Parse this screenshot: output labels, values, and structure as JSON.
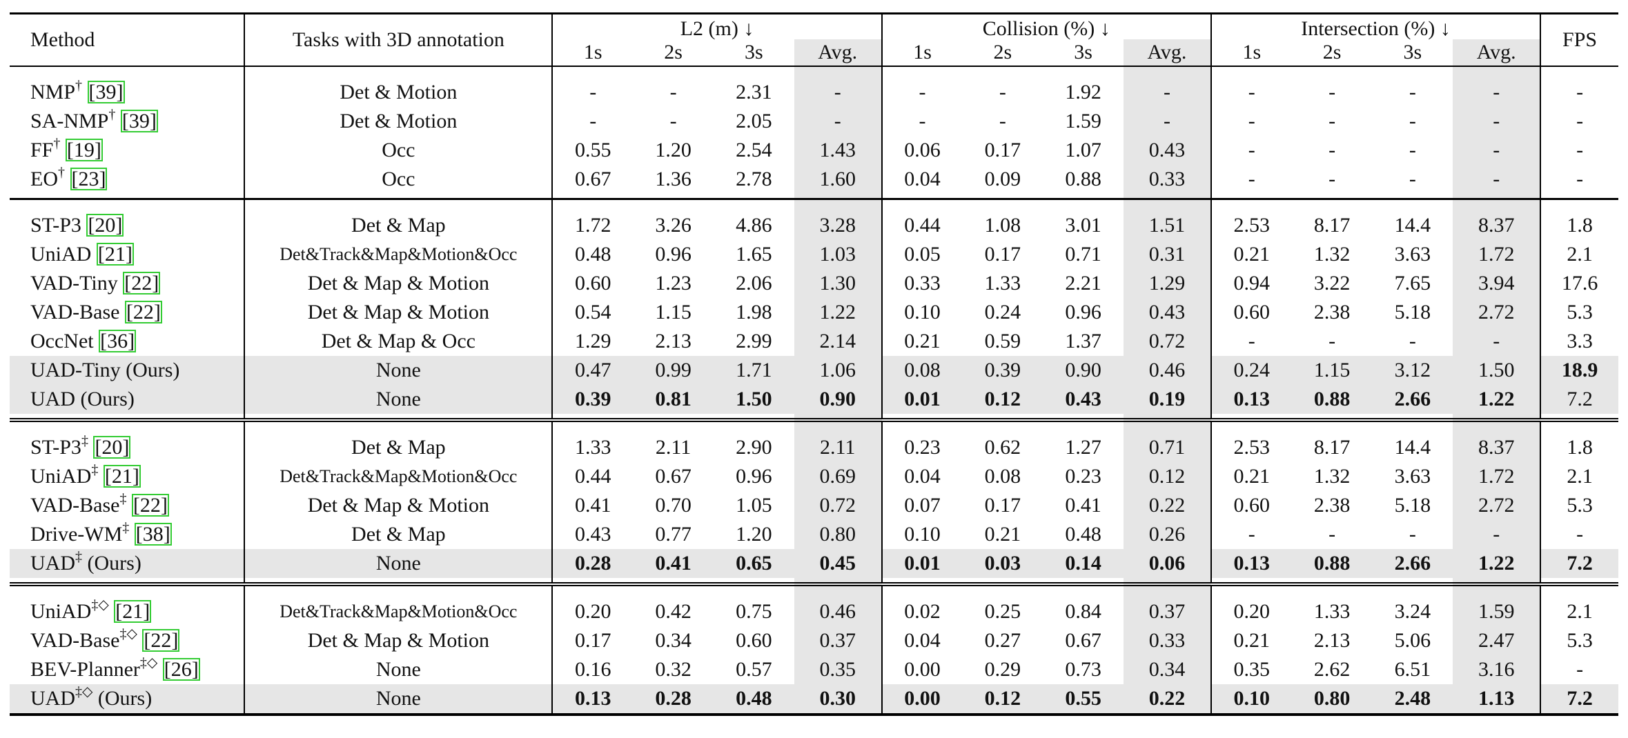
{
  "header": {
    "method": "Method",
    "tasks": "Tasks with 3D annotation",
    "groups": [
      {
        "title": "L2 (m) ↓",
        "cols": [
          "1s",
          "2s",
          "3s",
          "Avg."
        ]
      },
      {
        "title": "Collision (%) ↓",
        "cols": [
          "1s",
          "2s",
          "3s",
          "Avg."
        ]
      },
      {
        "title": "Intersection (%) ↓",
        "cols": [
          "1s",
          "2s",
          "3s",
          "Avg."
        ]
      }
    ],
    "fps": "FPS"
  },
  "sections": [
    {
      "rows": [
        {
          "name": "NMP",
          "sup": "†",
          "cite": "[39]",
          "tasks": "Det & Motion",
          "small": false,
          "values": [
            "-",
            "-",
            "2.31",
            "-",
            "-",
            "-",
            "1.92",
            "-",
            "-",
            "-",
            "-",
            "-",
            "-"
          ]
        },
        {
          "name": "SA-NMP",
          "sup": "†",
          "cite": "[39]",
          "tasks": "Det & Motion",
          "small": false,
          "values": [
            "-",
            "-",
            "2.05",
            "-",
            "-",
            "-",
            "1.59",
            "-",
            "-",
            "-",
            "-",
            "-",
            "-"
          ]
        },
        {
          "name": "FF",
          "sup": "†",
          "cite": "[19]",
          "tasks": "Occ",
          "small": false,
          "values": [
            "0.55",
            "1.20",
            "2.54",
            "1.43",
            "0.06",
            "0.17",
            "1.07",
            "0.43",
            "-",
            "-",
            "-",
            "-",
            "-"
          ]
        },
        {
          "name": "EO",
          "sup": "†",
          "cite": "[23]",
          "tasks": "Occ",
          "small": false,
          "values": [
            "0.67",
            "1.36",
            "2.78",
            "1.60",
            "0.04",
            "0.09",
            "0.88",
            "0.33",
            "-",
            "-",
            "-",
            "-",
            "-"
          ]
        }
      ]
    },
    {
      "rows": [
        {
          "name": "ST-P3",
          "sup": "",
          "cite": "[20]",
          "tasks": "Det & Map",
          "small": false,
          "values": [
            "1.72",
            "3.26",
            "4.86",
            "3.28",
            "0.44",
            "1.08",
            "3.01",
            "1.51",
            "2.53",
            "8.17",
            "14.4",
            "8.37",
            "1.8"
          ]
        },
        {
          "name": "UniAD",
          "sup": "",
          "cite": "[21]",
          "tasks": "Det&Track&Map&Motion&Occ",
          "small": true,
          "values": [
            "0.48",
            "0.96",
            "1.65",
            "1.03",
            "0.05",
            "0.17",
            "0.71",
            "0.31",
            "0.21",
            "1.32",
            "3.63",
            "1.72",
            "2.1"
          ]
        },
        {
          "name": "VAD-Tiny",
          "sup": "",
          "cite": "[22]",
          "tasks": "Det & Map & Motion",
          "small": false,
          "values": [
            "0.60",
            "1.23",
            "2.06",
            "1.30",
            "0.33",
            "1.33",
            "2.21",
            "1.29",
            "0.94",
            "3.22",
            "7.65",
            "3.94",
            "17.6"
          ]
        },
        {
          "name": "VAD-Base",
          "sup": "",
          "cite": "[22]",
          "tasks": "Det & Map & Motion",
          "small": false,
          "values": [
            "0.54",
            "1.15",
            "1.98",
            "1.22",
            "0.10",
            "0.24",
            "0.96",
            "0.43",
            "0.60",
            "2.38",
            "5.18",
            "2.72",
            "5.3"
          ]
        },
        {
          "name": "OccNet",
          "sup": "",
          "cite": "[36]",
          "tasks": "Det & Map & Occ",
          "small": false,
          "values": [
            "1.29",
            "2.13",
            "2.99",
            "2.14",
            "0.21",
            "0.59",
            "1.37",
            "0.72",
            "-",
            "-",
            "-",
            "-",
            "3.3"
          ]
        },
        {
          "name": "UAD-Tiny (Ours)",
          "sup": "",
          "cite": "",
          "tasks": "None",
          "small": false,
          "grey": true,
          "values": [
            "0.47",
            "0.99",
            "1.71",
            "1.06",
            "0.08",
            "0.39",
            "0.90",
            "0.46",
            "0.24",
            "1.15",
            "3.12",
            "1.50",
            "18.9"
          ],
          "bold": [
            12
          ]
        },
        {
          "name": "UAD (Ours)",
          "sup": "",
          "cite": "",
          "tasks": "None",
          "small": false,
          "grey": true,
          "values": [
            "0.39",
            "0.81",
            "1.50",
            "0.90",
            "0.01",
            "0.12",
            "0.43",
            "0.19",
            "0.13",
            "0.88",
            "2.66",
            "1.22",
            "7.2"
          ],
          "bold": [
            0,
            1,
            2,
            3,
            4,
            5,
            6,
            7,
            8,
            9,
            10,
            11
          ]
        }
      ]
    },
    {
      "rows": [
        {
          "name": "ST-P3",
          "sup": "‡",
          "cite": "[20]",
          "tasks": "Det & Map",
          "small": false,
          "values": [
            "1.33",
            "2.11",
            "2.90",
            "2.11",
            "0.23",
            "0.62",
            "1.27",
            "0.71",
            "2.53",
            "8.17",
            "14.4",
            "8.37",
            "1.8"
          ]
        },
        {
          "name": "UniAD",
          "sup": "‡",
          "cite": "[21]",
          "tasks": "Det&Track&Map&Motion&Occ",
          "small": true,
          "values": [
            "0.44",
            "0.67",
            "0.96",
            "0.69",
            "0.04",
            "0.08",
            "0.23",
            "0.12",
            "0.21",
            "1.32",
            "3.63",
            "1.72",
            "2.1"
          ]
        },
        {
          "name": "VAD-Base",
          "sup": "‡",
          "cite": "[22]",
          "tasks": "Det & Map & Motion",
          "small": false,
          "values": [
            "0.41",
            "0.70",
            "1.05",
            "0.72",
            "0.07",
            "0.17",
            "0.41",
            "0.22",
            "0.60",
            "2.38",
            "5.18",
            "2.72",
            "5.3"
          ]
        },
        {
          "name": "Drive-WM",
          "sup": "‡",
          "cite": "[38]",
          "tasks": "Det & Map",
          "small": false,
          "values": [
            "0.43",
            "0.77",
            "1.20",
            "0.80",
            "0.10",
            "0.21",
            "0.48",
            "0.26",
            "-",
            "-",
            "-",
            "-",
            "-"
          ]
        },
        {
          "name": "UAD",
          "sup": "‡",
          "cite": "",
          "suffix": " (Ours)",
          "tasks": "None",
          "small": false,
          "grey": true,
          "values": [
            "0.28",
            "0.41",
            "0.65",
            "0.45",
            "0.01",
            "0.03",
            "0.14",
            "0.06",
            "0.13",
            "0.88",
            "2.66",
            "1.22",
            "7.2"
          ],
          "bold": [
            0,
            1,
            2,
            3,
            4,
            5,
            6,
            7,
            8,
            9,
            10,
            11,
            12
          ]
        }
      ]
    },
    {
      "rows": [
        {
          "name": "UniAD",
          "sup": "‡◇",
          "cite": "[21]",
          "tasks": "Det&Track&Map&Motion&Occ",
          "small": true,
          "values": [
            "0.20",
            "0.42",
            "0.75",
            "0.46",
            "0.02",
            "0.25",
            "0.84",
            "0.37",
            "0.20",
            "1.33",
            "3.24",
            "1.59",
            "2.1"
          ]
        },
        {
          "name": "VAD-Base",
          "sup": "‡◇",
          "cite": "[22]",
          "tasks": "Det & Map & Motion",
          "small": false,
          "values": [
            "0.17",
            "0.34",
            "0.60",
            "0.37",
            "0.04",
            "0.27",
            "0.67",
            "0.33",
            "0.21",
            "2.13",
            "5.06",
            "2.47",
            "5.3"
          ]
        },
        {
          "name": "BEV-Planner",
          "sup": "‡◇",
          "cite": "[26]",
          "tasks": "None",
          "small": false,
          "values": [
            "0.16",
            "0.32",
            "0.57",
            "0.35",
            "0.00",
            "0.29",
            "0.73",
            "0.34",
            "0.35",
            "2.62",
            "6.51",
            "3.16",
            "-"
          ]
        },
        {
          "name": "UAD",
          "sup": "‡◇",
          "cite": "",
          "suffix": " (Ours)",
          "tasks": "None",
          "small": false,
          "grey": true,
          "values": [
            "0.13",
            "0.28",
            "0.48",
            "0.30",
            "0.00",
            "0.12",
            "0.55",
            "0.22",
            "0.10",
            "0.80",
            "2.48",
            "1.13",
            "7.2"
          ],
          "bold": [
            0,
            1,
            2,
            3,
            4,
            5,
            6,
            7,
            8,
            9,
            10,
            11,
            12
          ]
        }
      ]
    }
  ]
}
